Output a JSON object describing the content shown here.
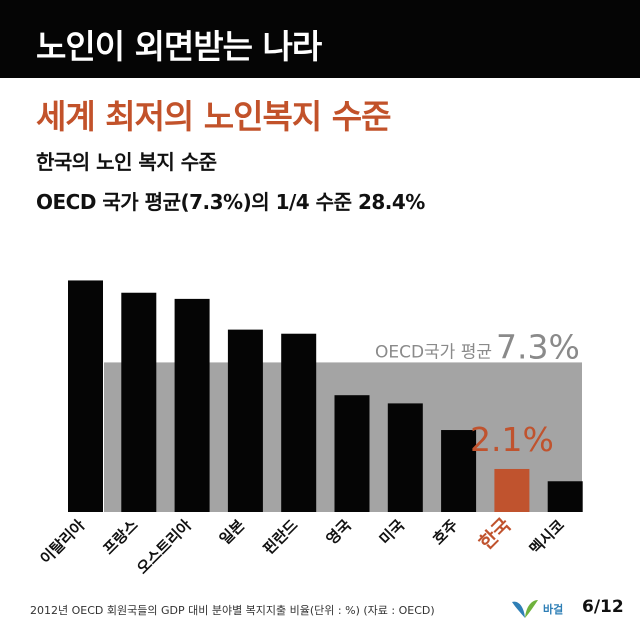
{
  "header": {
    "title": "노인이 외면받는 나라"
  },
  "headline": "세계 최저의 노인복지 수준",
  "subtitle_lines": [
    "한국의 노인 복지 수준",
    "OECD 국가 평균(7.3%)의 1/4 수준 28.4%"
  ],
  "chart_data": {
    "type": "bar",
    "categories": [
      "이탈리아",
      "프랑스",
      "오스트리아",
      "일본",
      "핀란드",
      "영국",
      "미국",
      "호주",
      "한국",
      "멕시코"
    ],
    "values": [
      11.3,
      10.7,
      10.4,
      8.9,
      8.7,
      5.7,
      5.3,
      4.0,
      2.1,
      1.5
    ],
    "highlight": {
      "category": "한국",
      "value_label": "2.1%"
    },
    "average": {
      "label": "OECD국가 평균",
      "value_label": "7.3%",
      "value": 7.3
    },
    "ylim": [
      0,
      12.2
    ],
    "title": "",
    "xlabel": "",
    "ylabel": "",
    "colors": {
      "bar": "#050505",
      "highlight": "#c0532e",
      "average_band": "#a4a4a4",
      "average_text": "#8a8a8a"
    }
  },
  "footer": {
    "note": "2012년 OECD 회원국들의 GDP 대비 분야별 복지지출 비율(단위 : %) (자료 : OECD)",
    "logo_text": "바걸",
    "page": "6/12"
  }
}
